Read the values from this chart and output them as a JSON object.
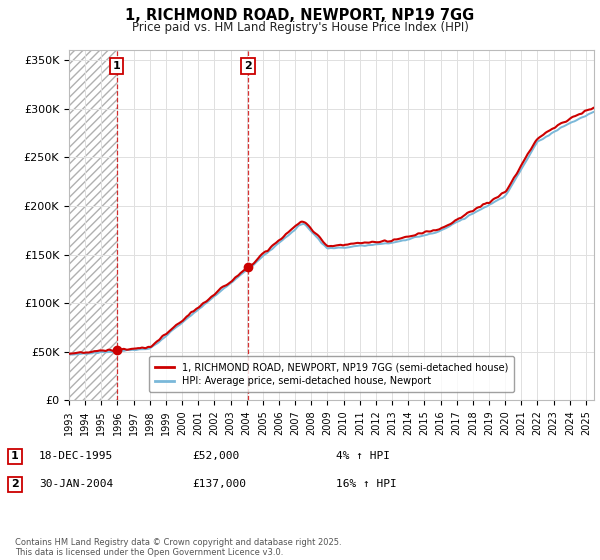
{
  "title": "1, RICHMOND ROAD, NEWPORT, NP19 7GG",
  "subtitle": "Price paid vs. HM Land Registry's House Price Index (HPI)",
  "ytick_values": [
    0,
    50000,
    100000,
    150000,
    200000,
    250000,
    300000,
    350000
  ],
  "ylim": [
    0,
    360000
  ],
  "xlim_start": 1993,
  "xlim_end": 2025.5,
  "hpi_line_color": "#7ab8d9",
  "price_line_color": "#cc0000",
  "purchase_marker_color": "#cc0000",
  "grid_color": "#e0e0e0",
  "legend_label_price": "1, RICHMOND ROAD, NEWPORT, NP19 7GG (semi-detached house)",
  "legend_label_hpi": "HPI: Average price, semi-detached house, Newport",
  "transaction1_label": "1",
  "transaction1_date": "18-DEC-1995",
  "transaction1_price": "£52,000",
  "transaction1_hpi": "4% ↑ HPI",
  "transaction1_year": 1995.96,
  "transaction1_value": 52000,
  "transaction2_label": "2",
  "transaction2_date": "30-JAN-2004",
  "transaction2_price": "£137,000",
  "transaction2_hpi": "16% ↑ HPI",
  "transaction2_year": 2004.08,
  "transaction2_value": 137000,
  "footer": "Contains HM Land Registry data © Crown copyright and database right 2025.\nThis data is licensed under the Open Government Licence v3.0.",
  "background_color": "#ffffff",
  "hatch_region_end": 1995.96
}
